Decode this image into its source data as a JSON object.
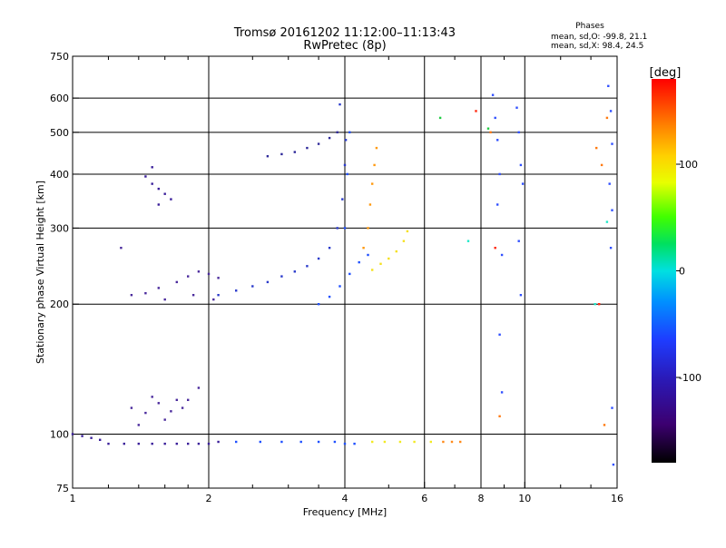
{
  "header": {
    "title_line1": "Tromsø 20161202 11:12:00–11:13:43",
    "title_line2": "RwPretec (8p)",
    "stats_title": "Phases",
    "stats_line1": "mean, sd,O: -99.8, 21.1",
    "stats_line2": "mean, sd,X:  98.4, 24.5"
  },
  "chart_data": {
    "type": "scatter",
    "title": "Tromsø 20161202 11:12:00–11:13:43",
    "subtitle": "RwPretec (8p)",
    "xlabel": "Frequency [MHz]",
    "ylabel": "Stationary phase Virtual Height [km]",
    "x_scale": "log",
    "y_scale": "log",
    "xlim": [
      1,
      16
    ],
    "ylim": [
      75,
      750
    ],
    "x_ticks": [
      1,
      2,
      4,
      6,
      8,
      10,
      16
    ],
    "x_tick_labels": [
      "1",
      "2",
      "4",
      "6",
      "8",
      "10",
      "16"
    ],
    "x_minor_ticks": [
      1.2,
      1.4,
      1.6,
      1.8,
      2.5,
      3,
      3.5,
      5,
      7,
      9,
      12,
      14
    ],
    "y_ticks": [
      75,
      100,
      200,
      300,
      400,
      500,
      600,
      750
    ],
    "y_tick_labels": [
      "75",
      "100",
      "200",
      "300",
      "400",
      "500",
      "600",
      "750"
    ],
    "grid": true,
    "colorbar": {
      "label": "[deg]",
      "range": [
        -180,
        180
      ],
      "ticks": [
        100,
        0,
        -100
      ],
      "tick_labels": [
        "100",
        "0",
        "-100"
      ],
      "colormap": "rainbow (black → purple → blue → cyan → green → yellow → orange → red)"
    },
    "series": [
      {
        "phase": -120,
        "color": "#3a1f9a",
        "points": [
          [
            1.0,
            100
          ],
          [
            1.05,
            99
          ],
          [
            1.1,
            98
          ],
          [
            1.15,
            97
          ],
          [
            1.2,
            95
          ],
          [
            1.3,
            95
          ],
          [
            1.4,
            95
          ],
          [
            1.5,
            95
          ],
          [
            1.6,
            95
          ],
          [
            1.7,
            95
          ],
          [
            1.8,
            95
          ],
          [
            1.9,
            95
          ],
          [
            2.0,
            95
          ],
          [
            2.1,
            96
          ]
        ]
      },
      {
        "phase": -105,
        "color": "#1f50ff",
        "points": [
          [
            2.3,
            96
          ],
          [
            2.6,
            96
          ],
          [
            2.9,
            96
          ],
          [
            3.2,
            96
          ],
          [
            3.5,
            96
          ],
          [
            3.8,
            96
          ],
          [
            4.0,
            95
          ],
          [
            4.2,
            95
          ]
        ]
      },
      {
        "phase": 95,
        "color": "#f2ea22",
        "points": [
          [
            4.6,
            96
          ],
          [
            4.9,
            96
          ],
          [
            5.3,
            96
          ],
          [
            5.7,
            96
          ],
          [
            6.2,
            96
          ]
        ]
      },
      {
        "phase": 140,
        "color": "#ff8a1a",
        "points": [
          [
            6.6,
            96
          ],
          [
            6.9,
            96
          ],
          [
            7.2,
            96
          ]
        ]
      },
      {
        "phase": -130,
        "color": "#4a2a9c",
        "points": [
          [
            1.35,
            115
          ],
          [
            1.45,
            112
          ],
          [
            1.55,
            118
          ],
          [
            1.65,
            113
          ],
          [
            1.8,
            120
          ],
          [
            1.9,
            128
          ],
          [
            1.4,
            105
          ],
          [
            1.6,
            108
          ],
          [
            1.75,
            115
          ],
          [
            1.5,
            122
          ],
          [
            1.7,
            120
          ]
        ]
      },
      {
        "phase": -130,
        "color": "#4a2a9c",
        "points": [
          [
            1.28,
            270
          ],
          [
            1.35,
            210
          ],
          [
            1.45,
            212
          ],
          [
            1.55,
            218
          ],
          [
            1.6,
            205
          ],
          [
            1.7,
            225
          ],
          [
            1.8,
            232
          ],
          [
            1.9,
            238
          ],
          [
            2.0,
            235
          ],
          [
            2.1,
            230
          ],
          [
            1.85,
            210
          ],
          [
            2.05,
            205
          ]
        ]
      },
      {
        "phase": -120,
        "color": "#3a1f9a",
        "points": [
          [
            1.45,
            395
          ],
          [
            1.5,
            380
          ],
          [
            1.55,
            370
          ],
          [
            1.6,
            360
          ],
          [
            1.65,
            350
          ],
          [
            1.55,
            340
          ],
          [
            1.5,
            415
          ]
        ]
      },
      {
        "phase": -110,
        "color": "#2a3acb",
        "points": [
          [
            2.1,
            210
          ],
          [
            2.3,
            215
          ],
          [
            2.5,
            220
          ],
          [
            2.7,
            225
          ],
          [
            2.9,
            232
          ],
          [
            3.1,
            238
          ],
          [
            3.3,
            245
          ],
          [
            3.5,
            255
          ],
          [
            3.7,
            270
          ],
          [
            3.85,
            300
          ],
          [
            3.95,
            350
          ],
          [
            4.0,
            420
          ],
          [
            4.02,
            480
          ],
          [
            3.9,
            580
          ]
        ]
      },
      {
        "phase": -105,
        "color": "#1f50ff",
        "points": [
          [
            3.5,
            200
          ],
          [
            3.7,
            208
          ],
          [
            3.9,
            220
          ],
          [
            4.1,
            235
          ],
          [
            4.3,
            250
          ],
          [
            4.5,
            260
          ],
          [
            4.0,
            300
          ],
          [
            4.05,
            400
          ],
          [
            4.1,
            500
          ]
        ]
      },
      {
        "phase": -125,
        "color": "#2f2a9a",
        "points": [
          [
            2.7,
            440
          ],
          [
            2.9,
            445
          ],
          [
            3.1,
            450
          ],
          [
            3.3,
            460
          ],
          [
            3.5,
            470
          ],
          [
            3.7,
            485
          ],
          [
            3.85,
            500
          ]
        ]
      },
      {
        "phase": 125,
        "color": "#ff9a10",
        "points": [
          [
            4.4,
            270
          ],
          [
            4.5,
            300
          ],
          [
            4.55,
            340
          ],
          [
            4.6,
            380
          ],
          [
            4.65,
            420
          ],
          [
            4.7,
            460
          ]
        ]
      },
      {
        "phase": 100,
        "color": "#f5e020",
        "points": [
          [
            4.6,
            240
          ],
          [
            4.8,
            248
          ],
          [
            5.0,
            255
          ],
          [
            5.2,
            265
          ],
          [
            5.4,
            280
          ],
          [
            5.5,
            295
          ]
        ]
      },
      {
        "phase": -100,
        "color": "#3050ff",
        "points": [
          [
            8.5,
            610
          ],
          [
            8.6,
            540
          ],
          [
            8.7,
            480
          ],
          [
            8.8,
            400
          ],
          [
            8.7,
            340
          ],
          [
            8.9,
            260
          ],
          [
            8.8,
            170
          ],
          [
            8.9,
            125
          ],
          [
            9.6,
            570
          ],
          [
            9.7,
            500
          ],
          [
            9.8,
            420
          ],
          [
            9.9,
            380
          ],
          [
            9.7,
            280
          ],
          [
            9.8,
            210
          ],
          [
            15.3,
            640
          ],
          [
            15.5,
            560
          ],
          [
            15.6,
            470
          ],
          [
            15.4,
            380
          ],
          [
            15.6,
            330
          ],
          [
            15.5,
            270
          ],
          [
            15.6,
            115
          ],
          [
            15.7,
            85
          ]
        ]
      },
      {
        "phase": 150,
        "color": "#ff7a10",
        "points": [
          [
            8.4,
            500
          ],
          [
            8.8,
            110
          ],
          [
            14.4,
            460
          ],
          [
            14.8,
            420
          ],
          [
            15.0,
            105
          ],
          [
            15.2,
            540
          ]
        ]
      },
      {
        "phase": 170,
        "color": "#ff2a10",
        "points": [
          [
            7.8,
            560
          ],
          [
            8.6,
            270
          ],
          [
            14.6,
            200
          ]
        ]
      },
      {
        "phase": 40,
        "color": "#22cc44",
        "points": [
          [
            6.5,
            540
          ],
          [
            8.3,
            510
          ]
        ]
      },
      {
        "phase": 10,
        "color": "#20e8c8",
        "points": [
          [
            7.5,
            280
          ],
          [
            15.2,
            310
          ],
          [
            14.3,
            200
          ]
        ]
      }
    ]
  }
}
